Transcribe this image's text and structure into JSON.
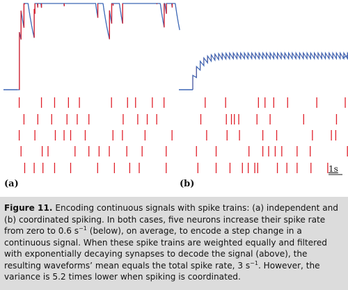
{
  "panels": [
    {
      "id": "a",
      "label": "(a)",
      "description_hidden": "",
      "waveform_peak_times_s": [
        0.04,
        0.09,
        0.14,
        0.18,
        0.24,
        0.29,
        0.33,
        0.4,
        0.45,
        0.52,
        0.56,
        0.62,
        0.68,
        0.72,
        0.78,
        0.85,
        0.9,
        0.94,
        1.0,
        1.06,
        1.1,
        1.16,
        1.22,
        1.27,
        1.32,
        1.38,
        1.44,
        1.48,
        1.56,
        1.62,
        1.7,
        1.74,
        1.8,
        1.86,
        1.92,
        1.98,
        2.02,
        2.08,
        2.14,
        2.2,
        2.25,
        2.3,
        2.36,
        2.42,
        2.48,
        2.52,
        2.58,
        2.64,
        2.7,
        2.74,
        2.8,
        2.86,
        2.92,
        2.98,
        3.04,
        3.1,
        3.16,
        3.22,
        3.28,
        3.32,
        3.38,
        3.44,
        3.5,
        3.56,
        3.62,
        3.68,
        3.74,
        3.8,
        3.86,
        3.9,
        3.96,
        4.04,
        4.1,
        4.16,
        4.22,
        4.28,
        4.34
      ],
      "spike_rows_s": [
        [
          0.05,
          0.66,
          1.02,
          1.4,
          1.7,
          2.58,
          3.02,
          3.24,
          3.7,
          4.02
        ],
        [
          0.18,
          0.56,
          0.94,
          1.36,
          1.64,
          1.96,
          2.9,
          3.3,
          3.56,
          3.82
        ],
        [
          0.05,
          0.48,
          1.04,
          1.28,
          1.46,
          1.86,
          2.62,
          2.88,
          3.5,
          4.24
        ],
        [
          0.1,
          0.68,
          0.84,
          1.58,
          1.96,
          2.24,
          2.52,
          3.0,
          3.42,
          4.08
        ],
        [
          0.2,
          0.46,
          0.7,
          1.02,
          1.46,
          2.2,
          2.66,
          3.08,
          3.34,
          4.08
        ]
      ]
    },
    {
      "id": "b",
      "label": "(b)",
      "spike_rows_s": [
        [
          0.34,
          0.9,
          1.8,
          1.98,
          2.22,
          2.6,
          3.4,
          4.18,
          4.34
        ],
        [
          0.22,
          0.92,
          1.06,
          1.14,
          1.26,
          1.76,
          2.12,
          3.04,
          3.94
        ],
        [
          0.38,
          0.94,
          1.28,
          1.92,
          2.3,
          3.28,
          3.8,
          3.92
        ],
        [
          0.1,
          0.64,
          1.54,
          1.92,
          2.08,
          2.26,
          2.44,
          2.86,
          3.22,
          4.24
        ],
        [
          0.14,
          0.64,
          1.02,
          1.36,
          1.52,
          1.7,
          1.78,
          2.32,
          2.58,
          2.86,
          3.24,
          3.7
        ]
      ]
    }
  ],
  "scale_bar": {
    "label": "1s",
    "duration_s": 1.0
  },
  "colors": {
    "spike": "#e0202a",
    "waveform_rise": "#e0202a",
    "waveform_decay": "#3b66b5",
    "baseline": "#3b66b5",
    "caption_bg": "#dcdcdc"
  },
  "caption": {
    "fig_label": "Figure 11.",
    "text_1": " Encoding continuous signals with spike trains: (a) independent and (b) coordinated spiking. In both cases, five neurons increase their spike rate from zero to 0.6 s",
    "sup_1": "−1",
    "text_2": " (below), on average, to encode a step change in a continuous signal. When these spike trains are weighted equally and filtered with exponentially decaying synapses to decode the signal (above), the resulting waveforms’ mean equals the total spike rate, 3 s",
    "sup_2": "−1",
    "text_3": ". However, the variance is 5.2 times lower when spiking is coordinated."
  }
}
